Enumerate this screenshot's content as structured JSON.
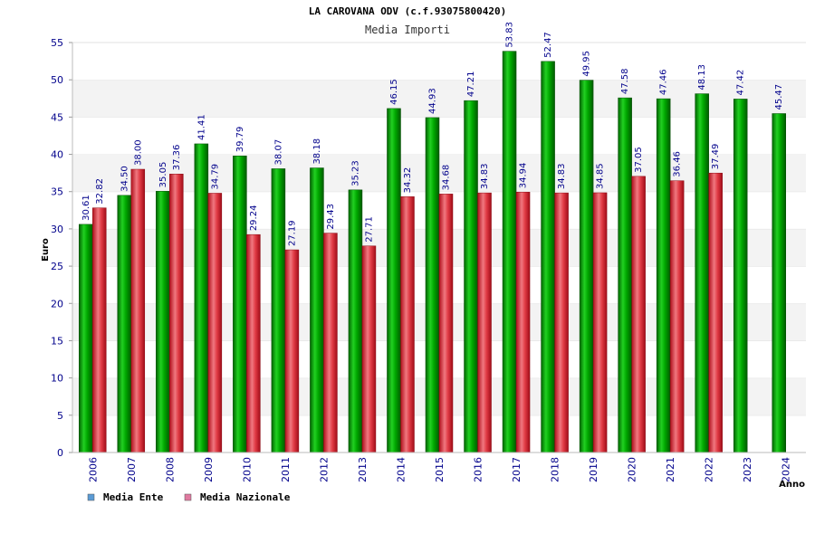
{
  "chart_data": {
    "type": "bar",
    "title": "LA CAROVANA ODV (c.f.93075800420)",
    "subtitle": "Media Importi",
    "xlabel": "Anno",
    "ylabel": "Euro",
    "ylim": [
      0,
      55
    ],
    "yticks": [
      0,
      5,
      10,
      15,
      20,
      25,
      30,
      35,
      40,
      45,
      50,
      55
    ],
    "categories": [
      "2006",
      "2007",
      "2008",
      "2009",
      "2010",
      "2011",
      "2012",
      "2013",
      "2014",
      "2015",
      "2016",
      "2017",
      "2018",
      "2019",
      "2020",
      "2021",
      "2022",
      "2023",
      "2024"
    ],
    "series": [
      {
        "name": "Media Ente",
        "color": "#00a000",
        "values": [
          30.61,
          34.5,
          35.05,
          41.41,
          39.79,
          38.07,
          38.18,
          35.23,
          46.15,
          44.93,
          47.21,
          53.83,
          52.47,
          49.95,
          47.58,
          47.46,
          48.13,
          47.42,
          45.47
        ],
        "labels": [
          "30.61",
          "34.50",
          "35.05",
          "41.41",
          "39.79",
          "38.07",
          "38.18",
          "35.23",
          "46.15",
          "44.93",
          "47.21",
          "53.83",
          "52.47",
          "49.95",
          "47.58",
          "47.46",
          "48.13",
          "47.42",
          "45.47"
        ]
      },
      {
        "name": "Media Nazionale",
        "color": "#e0303a",
        "values": [
          32.82,
          38.0,
          37.36,
          34.79,
          29.24,
          27.19,
          29.43,
          27.71,
          34.32,
          34.68,
          34.83,
          34.94,
          34.83,
          34.85,
          37.05,
          36.46,
          37.49,
          null,
          null
        ],
        "labels": [
          "32.82",
          "38.00",
          "37.36",
          "34.79",
          "29.24",
          "27.19",
          "29.43",
          "27.71",
          "34.32",
          "34.68",
          "34.83",
          "34.94",
          "34.83",
          "34.85",
          "37.05",
          "36.46",
          "37.49",
          null,
          null
        ]
      }
    ],
    "legend": {
      "position": "bottom-left",
      "items": [
        {
          "label": "Media Ente",
          "color": "#5b9bd5"
        },
        {
          "label": "Media Nazionale",
          "color": "#e07aa0"
        }
      ]
    },
    "grid": "horizontal-bands"
  }
}
